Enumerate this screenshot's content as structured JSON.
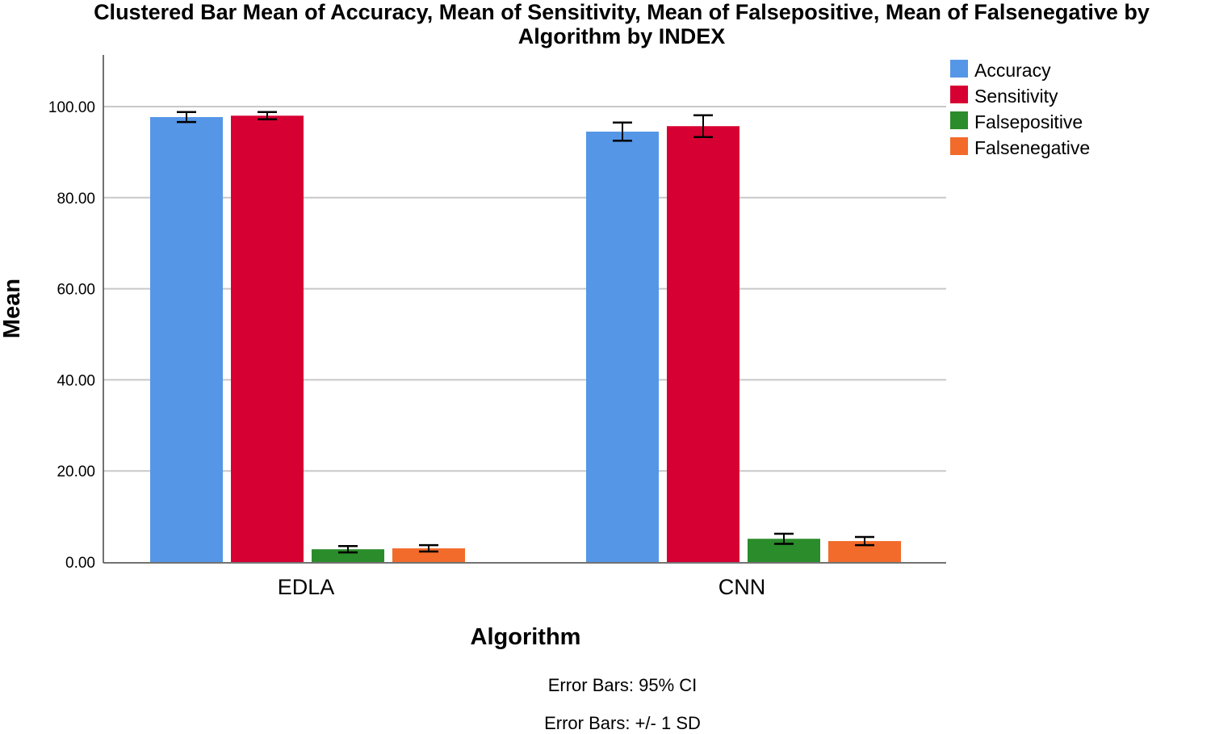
{
  "chart_data": {
    "type": "bar",
    "title_lines": [
      "Clustered Bar Mean of Accuracy, Mean of Sensitivity, Mean of Falsepositive, Mean of Falsenegative by",
      "Algorithm by INDEX"
    ],
    "xlabel": "Algorithm",
    "ylabel": "Mean",
    "ylim": [
      0,
      110
    ],
    "yticks": [
      "0.00",
      "20.00",
      "40.00",
      "60.00",
      "80.00",
      "100.00"
    ],
    "ytick_values": [
      0,
      20,
      40,
      60,
      80,
      100
    ],
    "grid": true,
    "legend_position": "top-right",
    "categories": [
      "EDLA",
      "CNN"
    ],
    "series": [
      {
        "name": "Accuracy",
        "color": "#5596E6",
        "values": [
          97.7,
          94.5
        ],
        "err": [
          1.1,
          2.0
        ]
      },
      {
        "name": "Sensitivity",
        "color": "#D70033",
        "values": [
          98.0,
          95.7
        ],
        "err": [
          0.8,
          2.4
        ]
      },
      {
        "name": "Falsepositive",
        "color": "#2A8C2A",
        "values": [
          2.8,
          5.1
        ],
        "err": [
          0.7,
          1.1
        ]
      },
      {
        "name": "Falsenegative",
        "color": "#F26B2B",
        "values": [
          3.0,
          4.6
        ],
        "err": [
          0.7,
          0.9
        ]
      }
    ],
    "footnotes": [
      "Error Bars: 95% CI",
      "Error Bars: +/- 1 SD"
    ]
  }
}
